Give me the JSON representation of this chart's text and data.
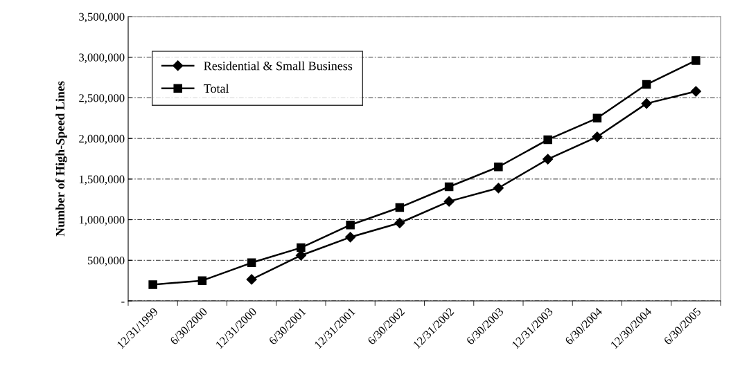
{
  "chart_data": {
    "type": "line",
    "ylabel": "Number of High-Speed Lines",
    "categories": [
      "12/31/1999",
      "6/30/2000",
      "12/31/2000",
      "6/30/2001",
      "12/31/2001",
      "6/30/2002",
      "12/31/2002",
      "6/30/2003",
      "12/31/2003",
      "6/30/2004",
      "12/30/2004",
      "6/30/2005"
    ],
    "series": [
      {
        "name": "Residential & Small Business",
        "color": "#000000",
        "marker": "diamond",
        "values": [
          null,
          null,
          265000,
          560000,
          785000,
          960000,
          1225000,
          1390000,
          1745000,
          2020000,
          2430000,
          2580000
        ]
      },
      {
        "name": "Total",
        "color": "#000000",
        "marker": "square",
        "values": [
          200000,
          250000,
          470000,
          655000,
          935000,
          1150000,
          1405000,
          1650000,
          1985000,
          2250000,
          2665000,
          2960000
        ]
      }
    ],
    "ylim": [
      0,
      3500000
    ],
    "yticks": [
      {
        "value": 0,
        "label": "-"
      },
      {
        "value": 500000,
        "label": "500,000"
      },
      {
        "value": 1000000,
        "label": "1,000,000"
      },
      {
        "value": 1500000,
        "label": "1,500,000"
      },
      {
        "value": 2000000,
        "label": "2,000,000"
      },
      {
        "value": 2500000,
        "label": "2,500,000"
      },
      {
        "value": 3000000,
        "label": "3,000,000"
      },
      {
        "value": 3500000,
        "label": "3,500,000"
      }
    ],
    "grid": "y",
    "legend": "top left",
    "line_style": "solid"
  }
}
